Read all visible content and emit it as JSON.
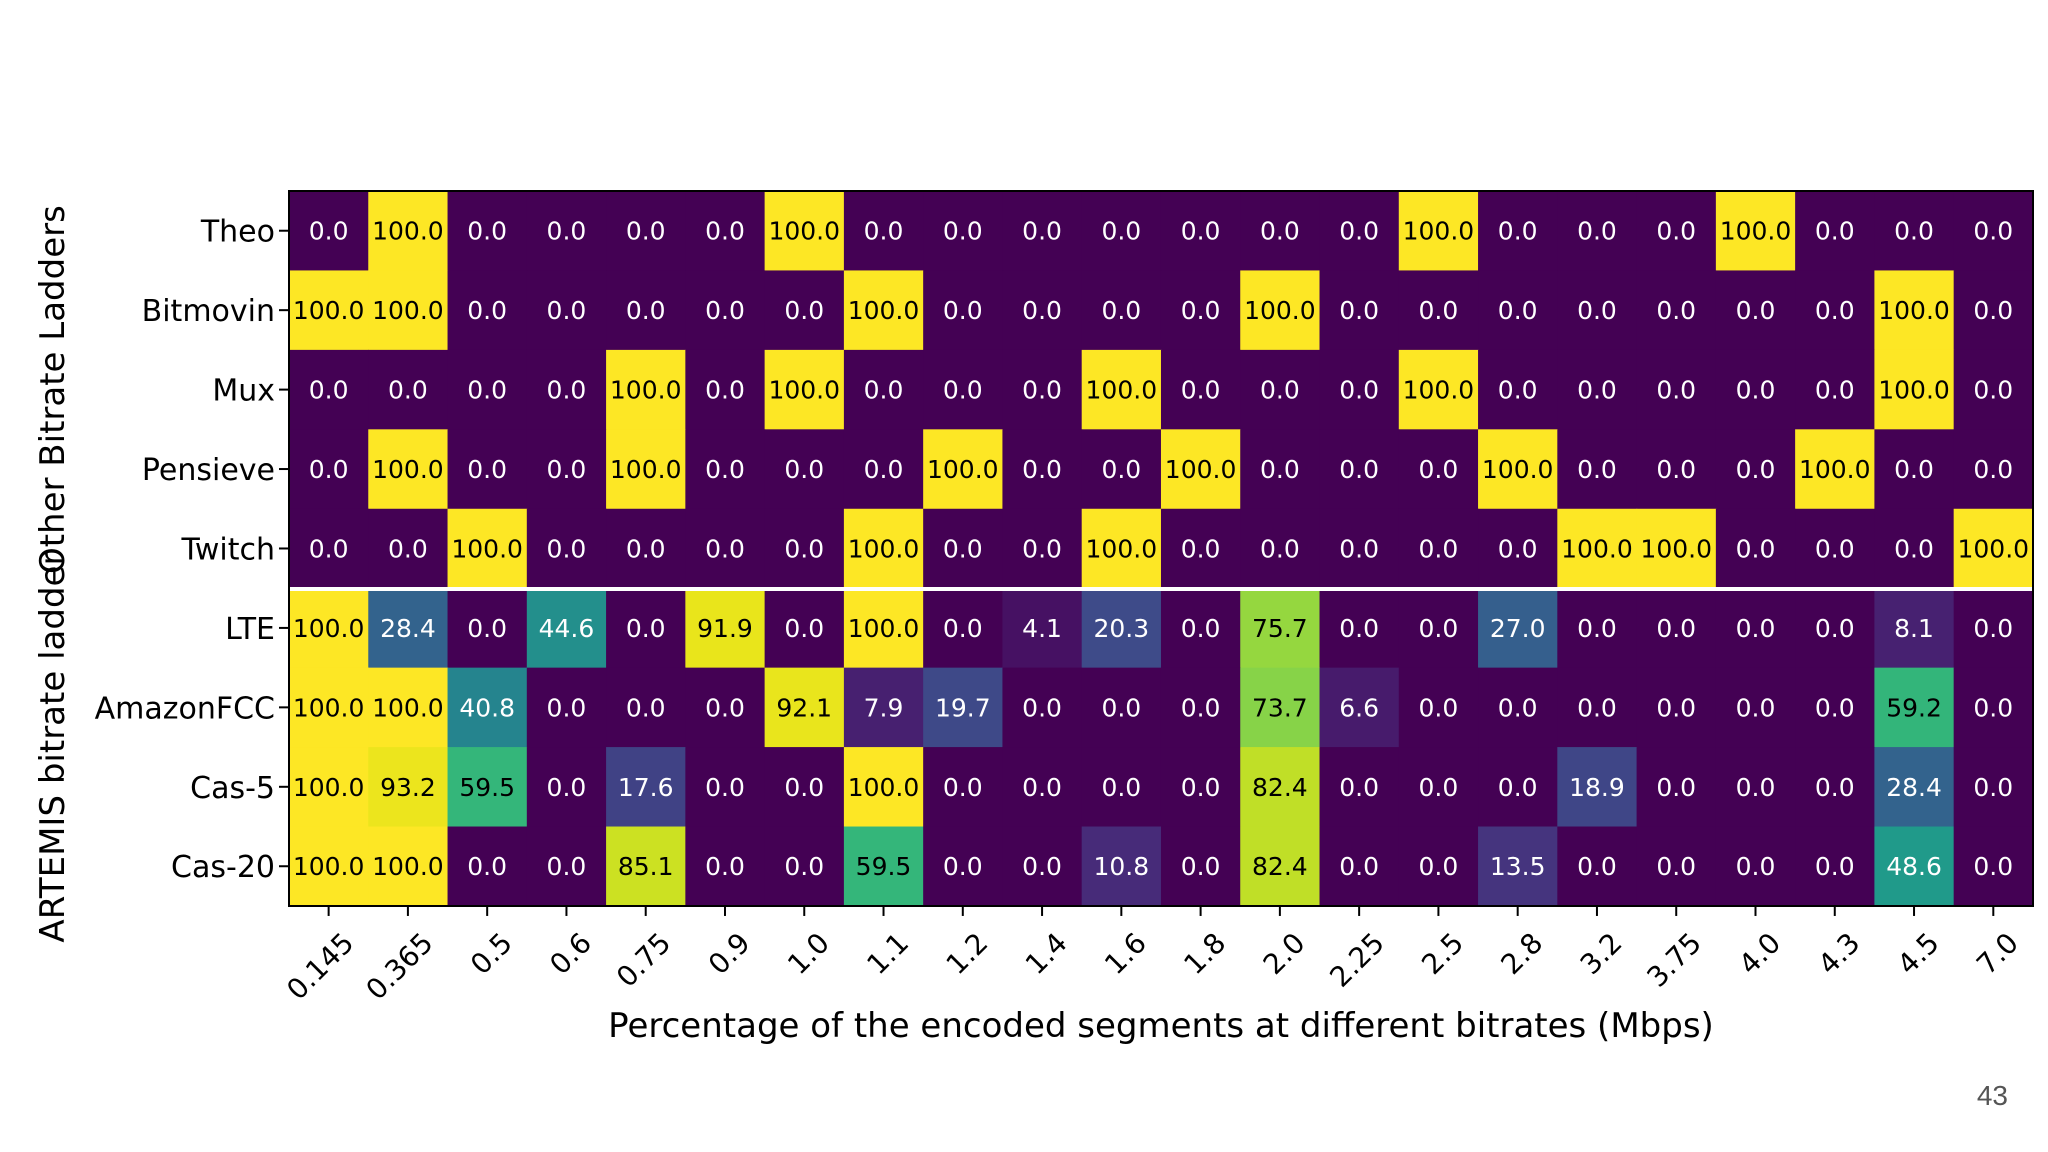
{
  "slide": {
    "page_number": "43"
  },
  "chart_data": {
    "type": "heatmap",
    "title": "",
    "xlabel": "Percentage of the encoded segments at different bitrates (Mbps)",
    "ylabel": "",
    "x_ticks": [
      "0.145",
      "0.365",
      "0.5",
      "0.6",
      "0.75",
      "0.9",
      "1.0",
      "1.1",
      "1.2",
      "1.4",
      "1.6",
      "1.8",
      "2.0",
      "2.25",
      "2.5",
      "2.8",
      "3.2",
      "3.75",
      "4.0",
      "4.3",
      "4.5",
      "7.0"
    ],
    "rows": [
      "Theo",
      "Bitmovin",
      "Mux",
      "Pensieve",
      "Twitch",
      "LTE",
      "AmazonFCC",
      "Cas-5",
      "Cas-20"
    ],
    "row_groups": [
      {
        "label": "Other Bitrate Ladders",
        "rows": [
          "Theo",
          "Bitmovin",
          "Mux",
          "Pensieve",
          "Twitch"
        ]
      },
      {
        "label": "ARTEMIS bitrate ladder",
        "rows": [
          "LTE",
          "AmazonFCC",
          "Cas-5",
          "Cas-20"
        ]
      }
    ],
    "value_range": [
      0,
      100
    ],
    "colormap": "viridis",
    "values": [
      [
        0.0,
        100.0,
        0.0,
        0.0,
        0.0,
        0.0,
        100.0,
        0.0,
        0.0,
        0.0,
        0.0,
        0.0,
        0.0,
        0.0,
        100.0,
        0.0,
        0.0,
        0.0,
        100.0,
        0.0,
        0.0,
        0.0
      ],
      [
        100.0,
        100.0,
        0.0,
        0.0,
        0.0,
        0.0,
        0.0,
        100.0,
        0.0,
        0.0,
        0.0,
        0.0,
        100.0,
        0.0,
        0.0,
        0.0,
        0.0,
        0.0,
        0.0,
        0.0,
        100.0,
        0.0
      ],
      [
        0.0,
        0.0,
        0.0,
        0.0,
        100.0,
        0.0,
        100.0,
        0.0,
        0.0,
        0.0,
        100.0,
        0.0,
        0.0,
        0.0,
        100.0,
        0.0,
        0.0,
        0.0,
        0.0,
        0.0,
        100.0,
        0.0
      ],
      [
        0.0,
        100.0,
        0.0,
        0.0,
        100.0,
        0.0,
        0.0,
        0.0,
        100.0,
        0.0,
        0.0,
        100.0,
        0.0,
        0.0,
        0.0,
        100.0,
        0.0,
        0.0,
        0.0,
        100.0,
        0.0,
        0.0
      ],
      [
        0.0,
        0.0,
        100.0,
        0.0,
        0.0,
        0.0,
        0.0,
        100.0,
        0.0,
        0.0,
        100.0,
        0.0,
        0.0,
        0.0,
        0.0,
        0.0,
        100.0,
        100.0,
        0.0,
        0.0,
        0.0,
        100.0
      ],
      [
        100.0,
        28.4,
        0.0,
        44.6,
        0.0,
        91.9,
        0.0,
        100.0,
        0.0,
        4.1,
        20.3,
        0.0,
        75.7,
        0.0,
        0.0,
        27.0,
        0.0,
        0.0,
        0.0,
        0.0,
        8.1,
        0.0
      ],
      [
        100.0,
        100.0,
        40.8,
        0.0,
        0.0,
        0.0,
        92.1,
        7.9,
        19.7,
        0.0,
        0.0,
        0.0,
        73.7,
        6.6,
        0.0,
        0.0,
        0.0,
        0.0,
        0.0,
        0.0,
        59.2,
        0.0
      ],
      [
        100.0,
        93.2,
        59.5,
        0.0,
        17.6,
        0.0,
        0.0,
        100.0,
        0.0,
        0.0,
        0.0,
        0.0,
        82.4,
        0.0,
        0.0,
        0.0,
        18.9,
        0.0,
        0.0,
        0.0,
        28.4,
        0.0
      ],
      [
        100.0,
        100.0,
        0.0,
        0.0,
        85.1,
        0.0,
        0.0,
        59.5,
        0.0,
        0.0,
        10.8,
        0.0,
        82.4,
        0.0,
        0.0,
        13.5,
        0.0,
        0.0,
        0.0,
        0.0,
        48.6,
        0.0
      ]
    ]
  }
}
